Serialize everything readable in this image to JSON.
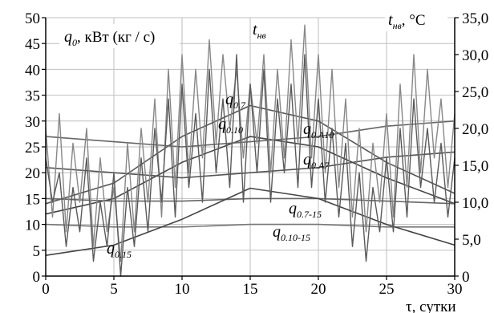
{
  "chart_data": {
    "type": "line",
    "x_range": [
      0,
      30
    ],
    "x_ticks": [
      0,
      5,
      10,
      15,
      20,
      25,
      30
    ],
    "y_left_range": [
      0,
      50
    ],
    "y_left_ticks": [
      0,
      5,
      10,
      15,
      20,
      25,
      30,
      35,
      40,
      45,
      50
    ],
    "y_right_range": [
      0,
      35
    ],
    "y_right_ticks": [
      "0",
      "5,0",
      "10,0",
      "15,0",
      "20,0",
      "25,0",
      "30,0",
      "35,0"
    ],
    "grid": true,
    "xlabel": "τ, сутки",
    "y_left_label": {
      "main": "q",
      "sub": "0",
      "rest": ", кВт (кг / с)"
    },
    "y_right_label": {
      "main": "t",
      "sub": "нв",
      "rest": ", °C"
    },
    "t_label": {
      "main": "t",
      "sub": "нв"
    },
    "series": [
      {
        "name": "q_0.7",
        "label": {
          "main": "q",
          "sub": "0.7"
        },
        "color": "#555555",
        "axis": "left",
        "x": [
          0,
          5,
          10,
          15,
          20,
          25,
          30
        ],
        "y": [
          14,
          18,
          27,
          33,
          30,
          22,
          16
        ]
      },
      {
        "name": "q_0.10",
        "label": {
          "main": "q",
          "sub": "0.10"
        },
        "color": "#444444",
        "axis": "left",
        "x": [
          0,
          5,
          10,
          15,
          20,
          25,
          30
        ],
        "y": [
          12,
          15,
          22,
          27,
          25,
          19,
          14
        ]
      },
      {
        "name": "q_0.A10",
        "label": {
          "main": "q",
          "sub": "0.A10"
        },
        "color": "#666666",
        "axis": "left",
        "x": [
          0,
          5,
          10,
          15,
          20,
          25,
          30
        ],
        "y": [
          27,
          26,
          25,
          26,
          27,
          29,
          30
        ]
      },
      {
        "name": "q_0.A7",
        "label": {
          "main": "q",
          "sub": "0.A7"
        },
        "color": "#555555",
        "axis": "left",
        "x": [
          0,
          5,
          10,
          15,
          20,
          25,
          30
        ],
        "y": [
          21,
          20,
          19,
          20,
          21,
          23,
          24
        ]
      },
      {
        "name": "q_0.7-15",
        "label": {
          "main": "q",
          "sub": "0.7-15"
        },
        "color": "#666666",
        "axis": "left",
        "x": [
          0,
          5,
          10,
          15,
          20,
          25,
          30
        ],
        "y": [
          15,
          14.5,
          14.5,
          15,
          15,
          14.5,
          14
        ]
      },
      {
        "name": "q_0.10-15",
        "label": {
          "main": "q",
          "sub": "0.10-15"
        },
        "color": "#777777",
        "axis": "left",
        "x": [
          0,
          5,
          10,
          15,
          20,
          25,
          30
        ],
        "y": [
          10,
          9.5,
          9.5,
          10,
          10,
          9.5,
          9.5
        ]
      },
      {
        "name": "q_0.15",
        "label": {
          "main": "q",
          "sub": "0.15"
        },
        "color": "#444444",
        "axis": "left",
        "x": [
          0,
          5,
          10,
          15,
          20,
          25,
          30
        ],
        "y": [
          4,
          6,
          11,
          17,
          15,
          10,
          6
        ]
      },
      {
        "name": "t_нв_1",
        "color": "#888888",
        "axis": "right",
        "x": [
          0,
          0.5,
          1,
          1.5,
          2,
          2.5,
          3,
          3.5,
          4,
          4.5,
          5,
          5.5,
          6,
          6.5,
          7,
          7.5,
          8,
          8.5,
          9,
          9.5,
          10,
          10.5,
          11,
          11.5,
          12,
          12.5,
          13,
          13.5,
          14,
          14.5,
          15,
          15.5,
          16,
          16.5,
          17,
          17.5,
          18,
          18.5,
          19,
          19.5,
          20,
          20.5,
          21,
          21.5,
          22,
          22.5,
          23,
          23.5,
          24,
          24.5,
          25,
          25.5,
          26,
          26.5,
          27,
          27.5,
          28,
          28.5,
          29,
          29.5,
          30
        ],
        "y": [
          20,
          8,
          22,
          6,
          18,
          10,
          20,
          4,
          16,
          6,
          12,
          2,
          18,
          6,
          20,
          10,
          24,
          8,
          28,
          12,
          30,
          14,
          28,
          16,
          32,
          18,
          30,
          20,
          28,
          16,
          26,
          18,
          30,
          14,
          28,
          16,
          32,
          18,
          34,
          16,
          30,
          14,
          28,
          12,
          24,
          8,
          20,
          6,
          18,
          10,
          22,
          8,
          26,
          12,
          30,
          14,
          28,
          16,
          24,
          12,
          22
        ]
      },
      {
        "name": "t_нв_2",
        "color": "#5a5a5a",
        "axis": "right",
        "x": [
          0,
          0.5,
          1,
          1.5,
          2,
          2.5,
          3,
          3.5,
          4,
          4.5,
          5,
          5.5,
          6,
          6.5,
          7,
          7.5,
          8,
          8.5,
          9,
          9.5,
          10,
          10.5,
          11,
          11.5,
          12,
          12.5,
          13,
          13.5,
          14,
          14.5,
          15,
          15.5,
          16,
          16.5,
          17,
          17.5,
          18,
          18.5,
          19,
          19.5,
          20,
          20.5,
          21,
          21.5,
          22,
          22.5,
          23,
          23.5,
          24,
          24.5,
          25,
          25.5,
          26,
          26.5,
          27,
          27.5,
          28,
          28.5,
          29,
          29.5,
          30
        ],
        "y": [
          16,
          10,
          14,
          4,
          12,
          6,
          16,
          2,
          10,
          4,
          14,
          0,
          12,
          4,
          16,
          6,
          20,
          10,
          24,
          8,
          26,
          12,
          22,
          10,
          28,
          14,
          24,
          12,
          30,
          10,
          26,
          14,
          28,
          10,
          24,
          14,
          26,
          12,
          30,
          12,
          24,
          10,
          20,
          8,
          18,
          4,
          14,
          2,
          12,
          6,
          16,
          6,
          20,
          8,
          24,
          12,
          20,
          10,
          18,
          8,
          16
        ]
      }
    ]
  }
}
